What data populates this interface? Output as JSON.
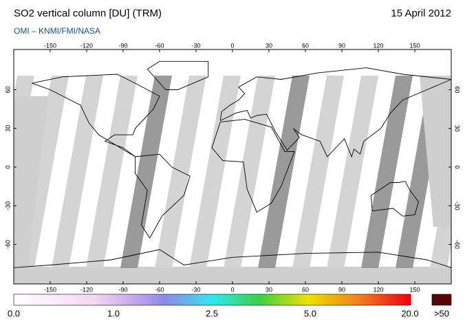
{
  "header": {
    "title": "SO2 vertical column [DU] (TRM)",
    "subtitle": "OMI  –  KNMI/FMI/NASA",
    "date": "15 April 2012"
  },
  "map": {
    "lon_ticks": [
      -150,
      -120,
      -90,
      -60,
      -30,
      0,
      30,
      60,
      90,
      120,
      150
    ],
    "lat_ticks": [
      60,
      30,
      0,
      -30,
      -60
    ]
  },
  "colorbar": {
    "labels": [
      "0.0",
      "1.0",
      "2.5",
      "5.0",
      "20.0"
    ],
    "overflow_label": ">50"
  }
}
